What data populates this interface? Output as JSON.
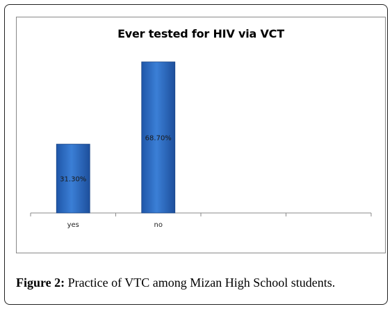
{
  "chart_data": {
    "type": "bar",
    "title": "Ever tested for HIV via VCT",
    "categories": [
      "yes",
      "no",
      "",
      ""
    ],
    "values": [
      31.3,
      68.7,
      null,
      null
    ],
    "data_labels": [
      "31.30%",
      "68.70%",
      "",
      ""
    ],
    "xlabel": "",
    "ylabel": "",
    "ylim": [
      0,
      100
    ],
    "grid": false,
    "legend": "none",
    "bar_color": "#2e6fc2"
  },
  "caption": {
    "label": "Figure 2:",
    "text": " Practice of VTC among Mizan High School students."
  }
}
